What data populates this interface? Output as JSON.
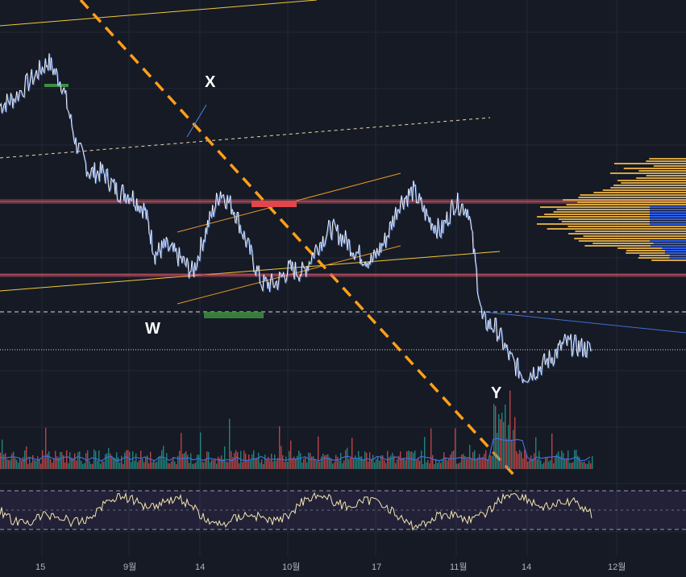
{
  "chart_data": {
    "type": "line",
    "symbol_pane": "price",
    "x_tick_labels": [
      "15",
      "9월",
      "14",
      "10월",
      "17",
      "11월",
      "14",
      "12월"
    ],
    "wave_labels": [
      "X",
      "W",
      "Y"
    ],
    "price_series_description_points": [
      [
        0,
        0.78
      ],
      [
        4,
        0.8
      ],
      [
        10,
        0.86
      ],
      [
        14,
        0.9
      ],
      [
        18,
        0.84
      ],
      [
        22,
        0.68
      ],
      [
        26,
        0.6
      ],
      [
        30,
        0.6
      ],
      [
        34,
        0.55
      ],
      [
        38,
        0.54
      ],
      [
        42,
        0.5
      ],
      [
        45,
        0.38
      ],
      [
        48,
        0.4
      ],
      [
        52,
        0.37
      ],
      [
        56,
        0.33
      ],
      [
        60,
        0.45
      ],
      [
        64,
        0.55
      ],
      [
        68,
        0.5
      ],
      [
        72,
        0.4
      ],
      [
        76,
        0.3
      ],
      [
        80,
        0.3
      ],
      [
        84,
        0.34
      ],
      [
        88,
        0.33
      ],
      [
        92,
        0.4
      ],
      [
        96,
        0.45
      ],
      [
        100,
        0.42
      ],
      [
        104,
        0.38
      ],
      [
        108,
        0.36
      ],
      [
        112,
        0.42
      ],
      [
        116,
        0.52
      ],
      [
        120,
        0.55
      ],
      [
        124,
        0.48
      ],
      [
        128,
        0.44
      ],
      [
        132,
        0.52
      ],
      [
        136,
        0.5
      ],
      [
        140,
        0.2
      ],
      [
        144,
        0.18
      ],
      [
        148,
        0.1
      ],
      [
        152,
        0.05
      ],
      [
        156,
        0.07
      ],
      [
        160,
        0.1
      ],
      [
        164,
        0.14
      ],
      [
        168,
        0.13
      ],
      [
        172,
        0.12
      ]
    ],
    "volume_profile": true,
    "volume_pane": true,
    "rsi_pane": {
      "upper": 70,
      "lower": 30
    },
    "grid": true,
    "colors": {
      "background": "#161a25",
      "price_line": "#ffffff",
      "trend_line": "#f0c93a",
      "dashed_trend": "#ff9f1a",
      "resistance_band": "#e05a6a",
      "support_box": "#3e8e41",
      "volume_up": "#26a69a",
      "volume_down": "#ef5350",
      "rsi_line": "#f5e6b0",
      "profile_main": "#d6a545",
      "profile_poc": "#2f5ee8"
    }
  }
}
